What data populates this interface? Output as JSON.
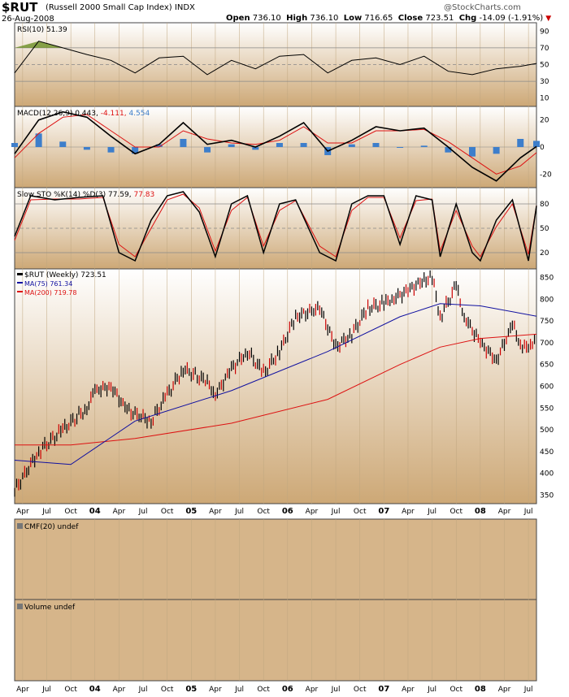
{
  "header": {
    "symbol": "$RUT",
    "name": "(Russell 2000 Small Cap Index)",
    "exchange": "INDX",
    "date": "26-Aug-2008",
    "open_label": "Open",
    "open": "736.10",
    "high_label": "High",
    "high": "736.10",
    "low_label": "Low",
    "low": "716.65",
    "close_label": "Close",
    "close": "723.51",
    "chg_label": "Chg",
    "chg": "-14.09 (-1.91%)",
    "watermark": "@StockCharts.com"
  },
  "colors": {
    "panel_bg_top": "#ffffff",
    "panel_bg_bottom": "#cda876",
    "price_bar_up": "#000000",
    "price_bar_down": "#cc0000",
    "ma75": "#1010a0",
    "ma200": "#dd1111",
    "macd_line": "#000000",
    "signal_line": "#dd1111",
    "histogram": "#3d7ecb",
    "rsi_fill": "#6b8e23",
    "down_arrow": "#cc0000"
  },
  "x_axis": {
    "ticks": [
      "Apr",
      "Jul",
      "Oct",
      "04",
      "Apr",
      "Jul",
      "Oct",
      "05",
      "Apr",
      "Jul",
      "Oct",
      "06",
      "Apr",
      "Jul",
      "Oct",
      "07",
      "Apr",
      "Jul",
      "Oct",
      "08",
      "Apr",
      "Jul"
    ],
    "bold_ticks": [
      "04",
      "05",
      "06",
      "07",
      "08"
    ],
    "start": "2003-03",
    "end": "2008-08"
  },
  "chart_data": [
    {
      "type": "line",
      "panel": "rsi",
      "title": "RSI(10) 51.39",
      "ylim": [
        0,
        100
      ],
      "y_ticks": [
        90,
        70,
        50,
        30,
        10
      ],
      "reference_lines": [
        70,
        50,
        30
      ],
      "overbought_fill": 70,
      "series": [
        {
          "name": "RSI(10)",
          "last": 51.39,
          "x": [
            "2003-03",
            "2003-06",
            "2003-09",
            "2003-12",
            "2004-03",
            "2004-06",
            "2004-09",
            "2004-12",
            "2005-03",
            "2005-06",
            "2005-09",
            "2005-12",
            "2006-03",
            "2006-06",
            "2006-09",
            "2006-12",
            "2007-03",
            "2007-06",
            "2007-09",
            "2007-12",
            "2008-03",
            "2008-06",
            "2008-08"
          ],
          "values": [
            40,
            78,
            70,
            62,
            55,
            40,
            58,
            60,
            38,
            55,
            45,
            60,
            62,
            40,
            55,
            58,
            50,
            60,
            42,
            38,
            45,
            48,
            51.39
          ]
        }
      ]
    },
    {
      "type": "line",
      "panel": "macd",
      "title": "MACD(12,26,9)",
      "values_label": [
        "0.443",
        "-4.111",
        "4.554"
      ],
      "ylim": [
        -30,
        30
      ],
      "y_ticks": [
        20,
        0,
        -20
      ],
      "series": [
        {
          "name": "MACD",
          "x": [
            "2003-03",
            "2003-06",
            "2003-09",
            "2003-12",
            "2004-03",
            "2004-06",
            "2004-09",
            "2004-12",
            "2005-03",
            "2005-06",
            "2005-09",
            "2005-12",
            "2006-03",
            "2006-06",
            "2006-09",
            "2006-12",
            "2007-03",
            "2007-06",
            "2007-09",
            "2007-12",
            "2008-03",
            "2008-06",
            "2008-08"
          ],
          "values": [
            -5,
            20,
            26,
            22,
            8,
            -5,
            2,
            18,
            2,
            5,
            0,
            8,
            18,
            -3,
            5,
            15,
            12,
            14,
            0,
            -15,
            -25,
            -8,
            0.443
          ]
        },
        {
          "name": "Signal",
          "x": [
            "2003-03",
            "2003-06",
            "2003-09",
            "2003-12",
            "2004-03",
            "2004-06",
            "2004-09",
            "2004-12",
            "2005-03",
            "2005-06",
            "2005-09",
            "2005-12",
            "2006-03",
            "2006-06",
            "2006-09",
            "2006-12",
            "2007-03",
            "2007-06",
            "2007-09",
            "2007-12",
            "2008-03",
            "2008-06",
            "2008-08"
          ],
          "values": [
            -8,
            10,
            22,
            24,
            12,
            0,
            0,
            12,
            6,
            3,
            2,
            5,
            15,
            3,
            3,
            12,
            12,
            13,
            4,
            -8,
            -20,
            -14,
            -4.111
          ]
        },
        {
          "name": "Histogram",
          "x": [
            "2003-03",
            "2003-06",
            "2003-09",
            "2003-12",
            "2004-03",
            "2004-06",
            "2004-09",
            "2004-12",
            "2005-03",
            "2005-06",
            "2005-09",
            "2005-12",
            "2006-03",
            "2006-06",
            "2006-09",
            "2006-12",
            "2007-03",
            "2007-06",
            "2007-09",
            "2007-12",
            "2008-03",
            "2008-06",
            "2008-08"
          ],
          "values": [
            3,
            10,
            4,
            -2,
            -4,
            -5,
            2,
            6,
            -4,
            2,
            -2,
            3,
            3,
            -6,
            2,
            3,
            0,
            1,
            -4,
            -7,
            -5,
            6,
            4.554
          ]
        }
      ]
    },
    {
      "type": "line",
      "panel": "stochastics",
      "title": "Slow STO %K(14) %D(3)",
      "values_label": [
        "77.59",
        "77.83"
      ],
      "ylim": [
        0,
        100
      ],
      "y_ticks": [
        80,
        50,
        20
      ],
      "reference_lines": [
        80,
        50,
        20
      ],
      "series": [
        {
          "name": "%K",
          "x": [
            "2003-03",
            "2003-05",
            "2003-08",
            "2003-11",
            "2004-02",
            "2004-04",
            "2004-06",
            "2004-08",
            "2004-10",
            "2004-12",
            "2005-02",
            "2005-04",
            "2005-06",
            "2005-08",
            "2005-10",
            "2005-12",
            "2006-02",
            "2006-05",
            "2006-07",
            "2006-09",
            "2006-11",
            "2007-01",
            "2007-03",
            "2007-05",
            "2007-07",
            "2007-08",
            "2007-10",
            "2007-12",
            "2008-01",
            "2008-03",
            "2008-05",
            "2008-07",
            "2008-08"
          ],
          "values": [
            40,
            90,
            85,
            88,
            90,
            20,
            10,
            60,
            90,
            95,
            70,
            15,
            80,
            90,
            20,
            80,
            85,
            20,
            10,
            80,
            90,
            90,
            30,
            90,
            85,
            15,
            80,
            20,
            10,
            60,
            85,
            10,
            77.59
          ]
        },
        {
          "name": "%D",
          "x": [
            "2003-03",
            "2003-05",
            "2003-08",
            "2003-11",
            "2004-02",
            "2004-04",
            "2004-06",
            "2004-08",
            "2004-10",
            "2004-12",
            "2005-02",
            "2005-04",
            "2005-06",
            "2005-08",
            "2005-10",
            "2005-12",
            "2006-02",
            "2006-05",
            "2006-07",
            "2006-09",
            "2006-11",
            "2007-01",
            "2007-03",
            "2007-05",
            "2007-07",
            "2007-08",
            "2007-10",
            "2007-12",
            "2008-01",
            "2008-03",
            "2008-05",
            "2008-07",
            "2008-08"
          ],
          "values": [
            35,
            85,
            86,
            86,
            88,
            30,
            15,
            50,
            85,
            92,
            75,
            22,
            72,
            88,
            28,
            72,
            84,
            28,
            15,
            72,
            88,
            88,
            38,
            84,
            86,
            22,
            72,
            28,
            15,
            52,
            80,
            18,
            77.83
          ]
        }
      ]
    },
    {
      "type": "line",
      "panel": "price",
      "title": "$RUT (Weekly) 723.51",
      "ylim": [
        330,
        870
      ],
      "y_ticks": [
        850,
        800,
        750,
        700,
        650,
        600,
        550,
        500,
        450,
        400,
        350
      ],
      "series": [
        {
          "name": "$RUT (Weekly)",
          "label": "$RUT (Weekly) 723.51",
          "x": [
            "2003-03",
            "2003-06",
            "2003-09",
            "2003-12",
            "2004-01",
            "2004-03",
            "2004-05",
            "2004-08",
            "2004-10",
            "2004-12",
            "2005-03",
            "2005-04",
            "2005-06",
            "2005-08",
            "2005-10",
            "2005-12",
            "2006-02",
            "2006-05",
            "2006-07",
            "2006-09",
            "2006-11",
            "2007-01",
            "2007-02",
            "2007-04",
            "2007-06",
            "2007-07",
            "2007-08",
            "2007-10",
            "2007-11",
            "2008-01",
            "2008-03",
            "2008-05",
            "2008-06",
            "2008-07",
            "2008-08"
          ],
          "values": [
            360,
            450,
            500,
            550,
            590,
            600,
            545,
            520,
            580,
            640,
            610,
            580,
            640,
            680,
            630,
            680,
            760,
            780,
            690,
            720,
            780,
            790,
            800,
            820,
            845,
            850,
            760,
            830,
            760,
            700,
            660,
            740,
            700,
            680,
            723.51
          ]
        },
        {
          "name": "MA(75)",
          "label": "MA(75) 761.34",
          "x": [
            "2003-03",
            "2003-10",
            "2004-06",
            "2005-06",
            "2006-06",
            "2007-03",
            "2007-08",
            "2008-01",
            "2008-08"
          ],
          "values": [
            430,
            420,
            520,
            590,
            680,
            760,
            790,
            785,
            761.34
          ]
        },
        {
          "name": "MA(200)",
          "label": "MA(200) 719.78",
          "x": [
            "2003-03",
            "2003-10",
            "2004-06",
            "2005-06",
            "2006-06",
            "2007-03",
            "2007-08",
            "2008-01",
            "2008-08"
          ],
          "values": [
            465,
            465,
            480,
            515,
            570,
            650,
            690,
            710,
            719.78
          ]
        }
      ]
    },
    {
      "type": "area",
      "panel": "cmf",
      "title": "CMF(20) undef",
      "series": []
    },
    {
      "type": "bar",
      "panel": "volume",
      "title": "Volume undef",
      "series": []
    }
  ]
}
